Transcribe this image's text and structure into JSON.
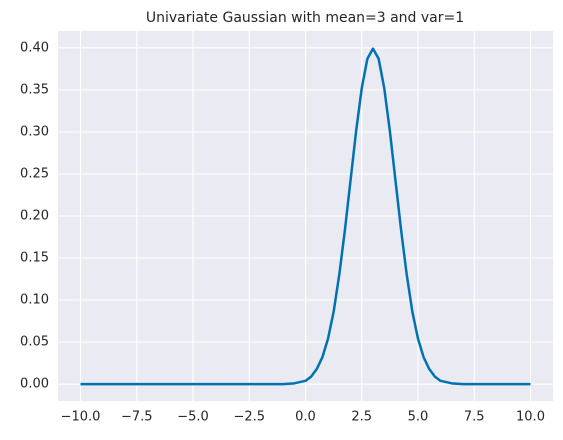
{
  "chart_data": {
    "type": "line",
    "title": "Univariate Gaussian with mean=3 and var=1",
    "x": [
      -10,
      -5,
      -1,
      -0.5,
      0,
      0.25,
      0.5,
      0.75,
      1,
      1.25,
      1.5,
      1.75,
      2,
      2.25,
      2.5,
      2.75,
      3,
      3.25,
      3.5,
      3.75,
      4,
      4.25,
      4.5,
      4.75,
      5,
      5.25,
      5.5,
      5.75,
      6,
      6.5,
      7,
      10
    ],
    "series": [
      {
        "color": "#0072b2",
        "values": [
          0,
          0,
          0,
          0.001,
          0.004,
          0.009,
          0.018,
          0.032,
          0.054,
          0.086,
          0.13,
          0.183,
          0.242,
          0.301,
          0.352,
          0.387,
          0.399,
          0.387,
          0.352,
          0.301,
          0.242,
          0.183,
          0.13,
          0.086,
          0.054,
          0.032,
          0.018,
          0.009,
          0.004,
          0.001,
          0,
          0
        ]
      }
    ],
    "xlim": [
      -11,
      11
    ],
    "xticks": [
      {
        "value": -10,
        "label": "−10.0"
      },
      {
        "value": -7.5,
        "label": "−7.5"
      },
      {
        "value": -5,
        "label": "−5.0"
      },
      {
        "value": -2.5,
        "label": "−2.5"
      },
      {
        "value": 0,
        "label": "0.0"
      },
      2.5,
      {
        "value": 5,
        "label": "5.0"
      },
      7.5,
      {
        "value": 10,
        "label": "10.0"
      }
    ],
    "ylim": [
      -0.02,
      0.42
    ],
    "yticks": [
      {
        "value": 0,
        "label": "0.00"
      },
      {
        "value": 0.05,
        "label": "0.05"
      },
      {
        "value": 0.1,
        "label": "0.10"
      },
      {
        "value": 0.15,
        "label": "0.15"
      },
      {
        "value": 0.2,
        "label": "0.20"
      },
      {
        "value": 0.25,
        "label": "0.25"
      },
      {
        "value": 0.3,
        "label": "0.30"
      },
      {
        "value": 0.35,
        "label": "0.35"
      },
      {
        "value": 0.4,
        "label": "0.40"
      }
    ],
    "grid": true
  }
}
